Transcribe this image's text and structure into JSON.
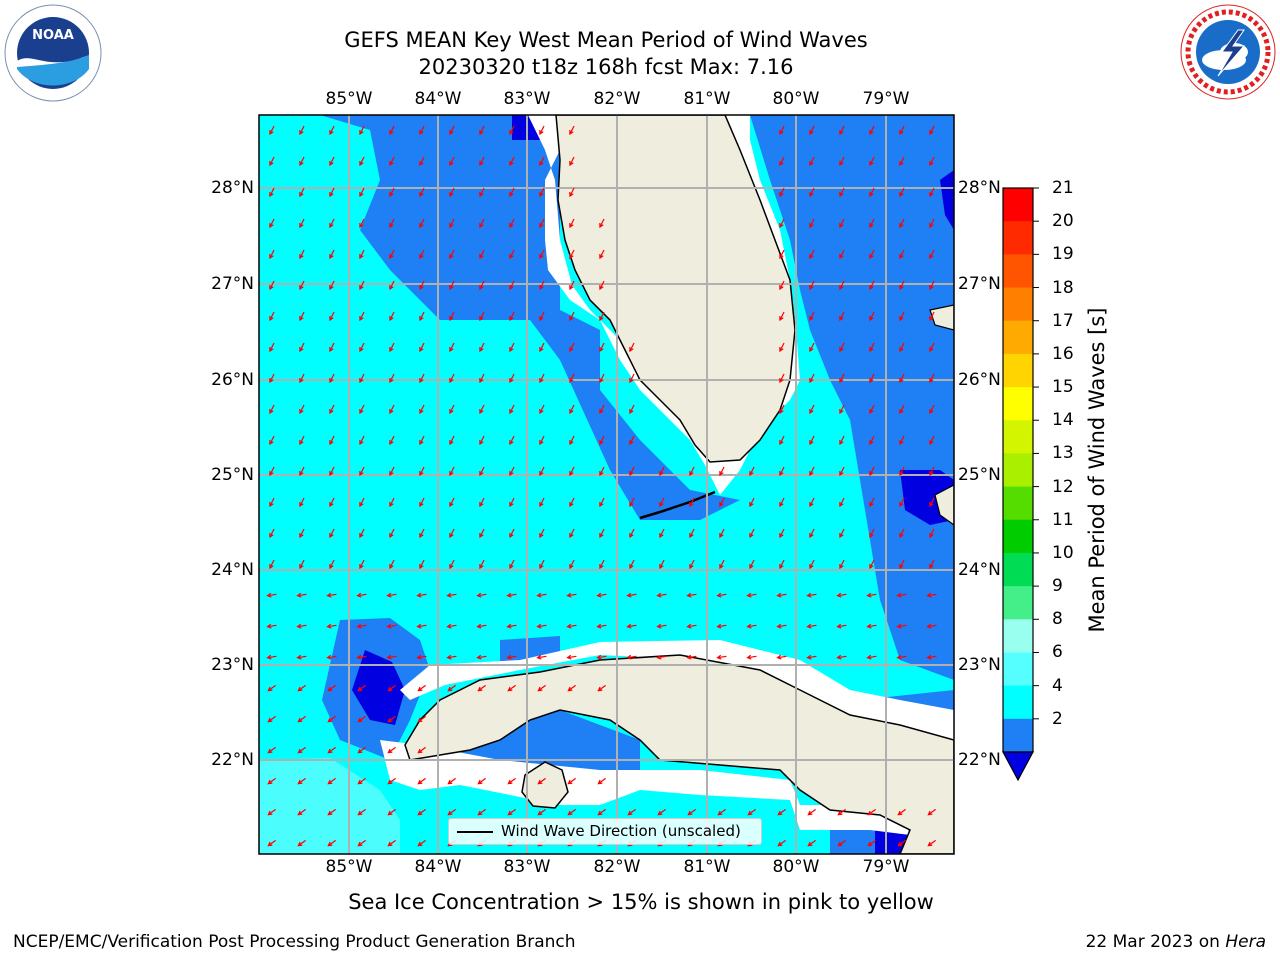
{
  "title": {
    "line1": "GEFS MEAN Key West Mean Period of Wind Waves",
    "line2": "20230320 t18z 168h fcst   Max: 7.16"
  },
  "map": {
    "lon_labels": [
      "85°W",
      "84°W",
      "83°W",
      "82°W",
      "81°W",
      "80°W",
      "79°W"
    ],
    "lat_labels": [
      "28°N",
      "27°N",
      "26°N",
      "25°N",
      "24°N",
      "23°N",
      "22°N"
    ],
    "colors": {
      "band_2_4": "#1f7ff5",
      "band_below_2": "#0000e0",
      "band_4_6": "#00ffff",
      "band_6_8": "#4cfdfd",
      "land": "#efedde",
      "arrows": "#ff0000",
      "grid": "#b0b0b0"
    }
  },
  "colorbar": {
    "ticks": [
      "21",
      "20",
      "19",
      "18",
      "17",
      "16",
      "15",
      "14",
      "13",
      "12",
      "11",
      "10",
      "9",
      "8",
      "6",
      "4",
      "2"
    ],
    "label": "Mean Period of Wind Waves [s]",
    "colors_top_to_bottom": [
      "#ff0000",
      "#ff2a00",
      "#ff5500",
      "#ff8000",
      "#ffaa00",
      "#ffd400",
      "#ffff00",
      "#d4f500",
      "#aaee00",
      "#55dd00",
      "#00cc00",
      "#00dd55",
      "#44ee88",
      "#99ffee",
      "#55ffff",
      "#00ffff",
      "#1f7ff5"
    ],
    "under_color": "#0000e0"
  },
  "legend": {
    "label": "Wind Wave Direction (unscaled)"
  },
  "ice_note": "Sea Ice Concentration > 15% is shown in pink to yellow",
  "footer": {
    "left": "NCEP/EMC/Verification Post Processing Product Generation Branch",
    "date": "22 Mar 2023 on ",
    "machine": "Hera"
  },
  "logos": {
    "noaa": "NOAA",
    "nws": "NATIONAL WEATHER SERVICE"
  }
}
